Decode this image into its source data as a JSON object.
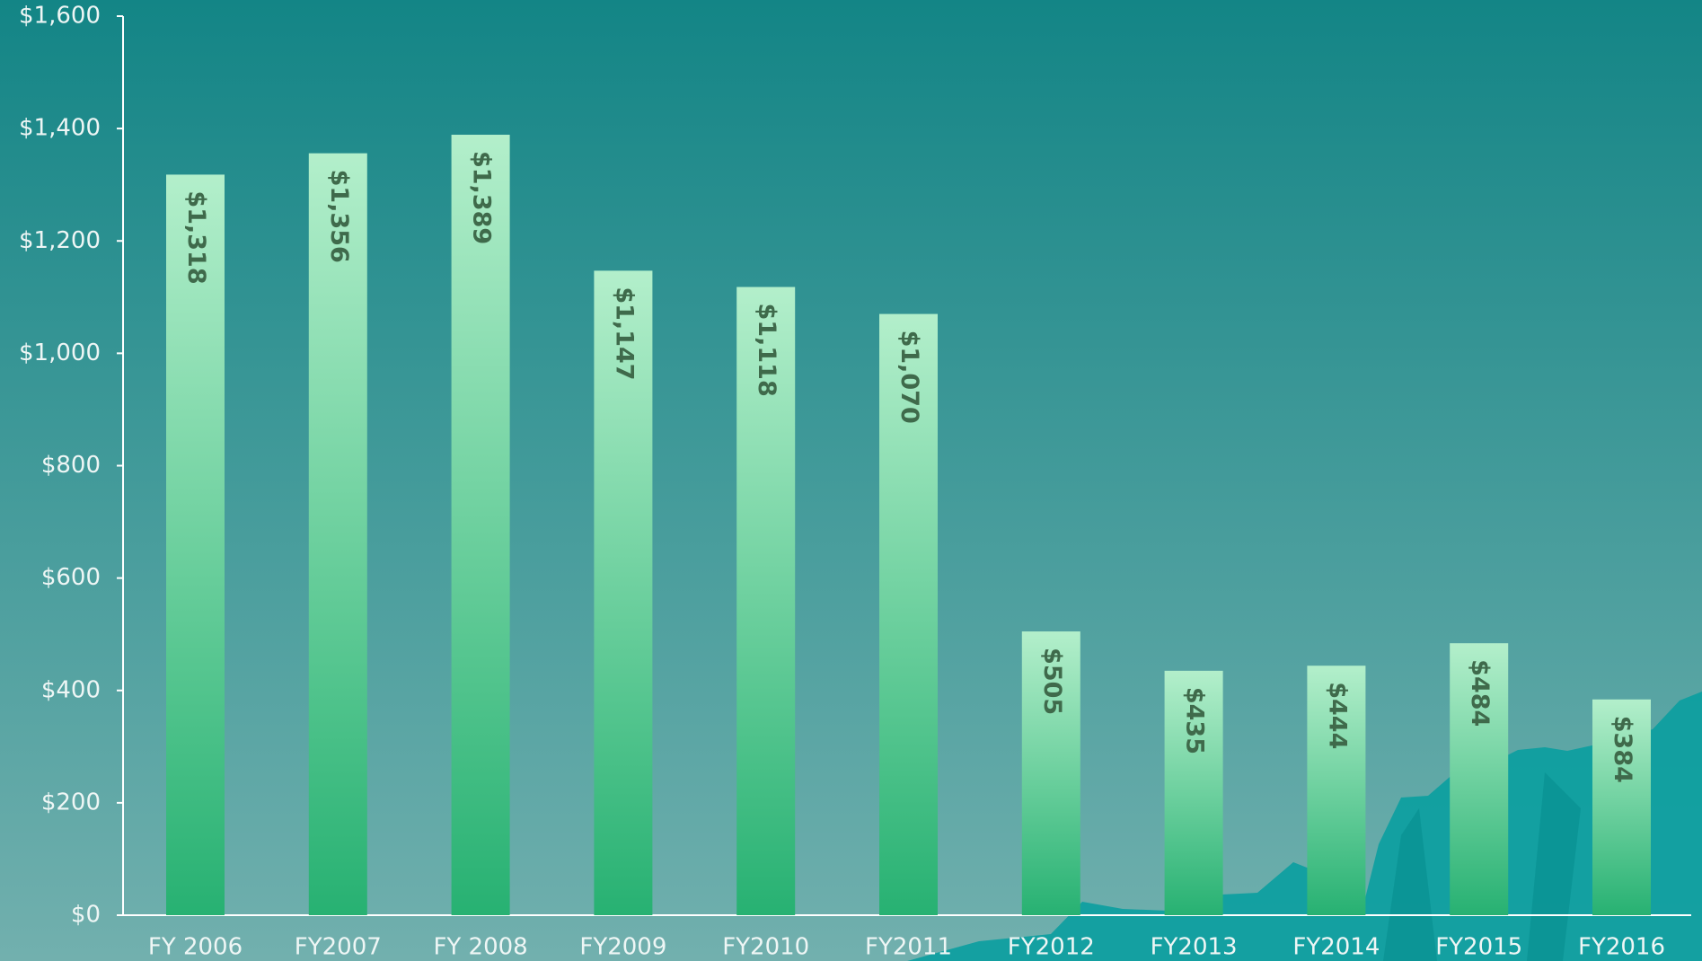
{
  "chart_data": {
    "type": "bar",
    "categories": [
      "FY 2006",
      "FY2007",
      "FY 2008",
      "FY2009",
      "FY2010",
      "FY2011",
      "FY2012",
      "FY2013",
      "FY2014",
      "FY2015",
      "FY2016"
    ],
    "values": [
      1318,
      1356,
      1389,
      1147,
      1118,
      1070,
      505,
      435,
      444,
      484,
      384
    ],
    "value_labels": [
      "$1,318",
      "$1,356",
      "$1,389",
      "$1,147",
      "$1,118",
      "$1,070",
      "$505",
      "$435",
      "$444",
      "$484",
      "$384"
    ],
    "ylim": [
      0,
      1600
    ],
    "yticks": [
      {
        "value": 0,
        "label": "$0"
      },
      {
        "value": 200,
        "label": "$200"
      },
      {
        "value": 400,
        "label": "$400"
      },
      {
        "value": 600,
        "label": "$600"
      },
      {
        "value": 800,
        "label": "$800"
      },
      {
        "value": 1000,
        "label": "$1,000"
      },
      {
        "value": 1200,
        "label": "$1,200"
      },
      {
        "value": 1400,
        "label": "$1,400"
      },
      {
        "value": 1600,
        "label": "$1,600"
      }
    ],
    "grid": false
  }
}
